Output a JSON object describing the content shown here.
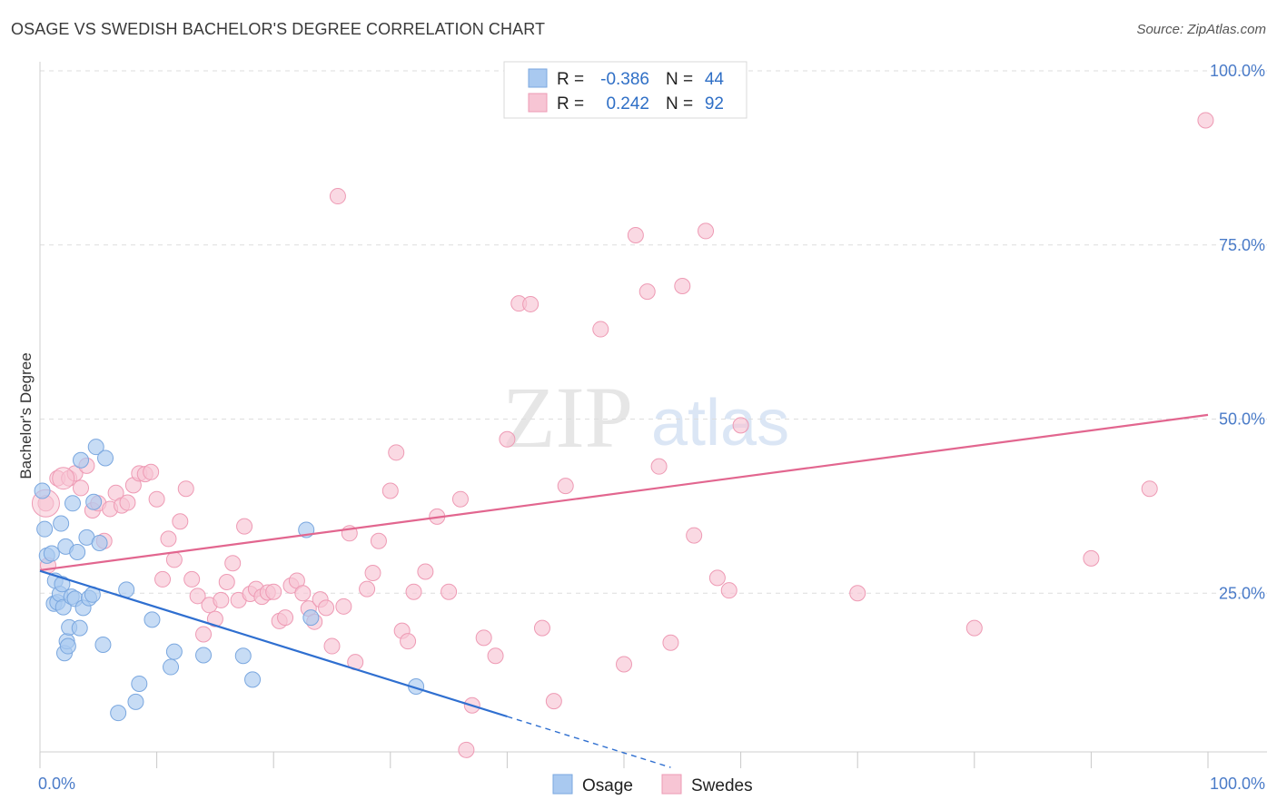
{
  "header": {
    "title": "OSAGE VS SWEDISH BACHELOR'S DEGREE CORRELATION CHART",
    "source": "Source: ZipAtlas.com"
  },
  "watermark": {
    "zip": "ZIP",
    "atlas": "atlas"
  },
  "legend_top": {
    "rows": [
      {
        "r_label": "R =",
        "r_value": "-0.386",
        "n_label": "N =",
        "n_value": "44",
        "color": "#a9c9f0"
      },
      {
        "r_label": "R =",
        "r_value": "0.242",
        "n_label": "N =",
        "n_value": "92",
        "color": "#f5b8cb"
      }
    ]
  },
  "legend_bottom": {
    "osage": "Osage",
    "swedes": "Swedes"
  },
  "colors": {
    "osage_fill": "#a9c9f0",
    "osage_stroke": "#7aa7df",
    "osage_line": "#2f6fd0",
    "swedes_fill": "#f7c5d4",
    "swedes_stroke": "#ee9ab4",
    "swedes_line": "#e2668f",
    "grid": "#dddddd",
    "tick_text": "#4a7bc8"
  },
  "chart_data": {
    "type": "scatter",
    "title": "OSAGE VS SWEDISH BACHELOR'S DEGREE CORRELATION CHART",
    "xlabel": "",
    "ylabel": "Bachelor's Degree",
    "xlim": [
      0,
      100
    ],
    "ylim": [
      0,
      100
    ],
    "x_tick_labels": [
      "0.0%",
      "100.0%"
    ],
    "y_tick_labels": [
      "25.0%",
      "50.0%",
      "75.0%",
      "100.0%"
    ],
    "y_ticks": [
      25,
      50,
      75,
      100
    ],
    "grid": true,
    "legend_position": "top-center",
    "series": [
      {
        "name": "Osage",
        "r": -0.386,
        "n": 44,
        "trend": {
          "x0": 0,
          "y0": 28.2,
          "x1": 40,
          "y1": 7.3,
          "dash_to_x": 54
        },
        "points": [
          [
            0.2,
            39.7
          ],
          [
            0.4,
            34.2
          ],
          [
            0.6,
            30.4
          ],
          [
            1,
            30.7
          ],
          [
            1.2,
            23.5
          ],
          [
            1.3,
            26.8
          ],
          [
            1.5,
            23.7
          ],
          [
            1.7,
            24.9
          ],
          [
            1.8,
            35
          ],
          [
            1.9,
            26.3
          ],
          [
            2,
            23
          ],
          [
            2.1,
            16.4
          ],
          [
            2.2,
            31.7
          ],
          [
            2.3,
            18.1
          ],
          [
            2.4,
            17.4
          ],
          [
            2.5,
            20.1
          ],
          [
            2.7,
            24.5
          ],
          [
            2.8,
            37.9
          ],
          [
            3,
            24.2
          ],
          [
            3.2,
            30.9
          ],
          [
            3.4,
            20
          ],
          [
            3.5,
            44.1
          ],
          [
            3.7,
            22.9
          ],
          [
            4,
            33
          ],
          [
            4.2,
            24.3
          ],
          [
            4.5,
            24.8
          ],
          [
            4.6,
            38.1
          ],
          [
            4.8,
            46
          ],
          [
            5.1,
            32.2
          ],
          [
            5.4,
            17.6
          ],
          [
            5.6,
            44.4
          ],
          [
            6.7,
            7.8
          ],
          [
            7.4,
            25.5
          ],
          [
            8.2,
            9.4
          ],
          [
            8.5,
            12
          ],
          [
            9.6,
            21.2
          ],
          [
            11.2,
            14.4
          ],
          [
            11.5,
            16.6
          ],
          [
            14,
            16.1
          ],
          [
            17.4,
            16
          ],
          [
            18.2,
            12.6
          ],
          [
            22.8,
            34.1
          ],
          [
            23.2,
            21.5
          ],
          [
            32.2,
            11.6
          ]
        ]
      },
      {
        "name": "Swedes",
        "r": 0.242,
        "n": 92,
        "trend": {
          "x0": 0,
          "y0": 28.3,
          "x1": 100,
          "y1": 50.6
        },
        "points": [
          [
            0.5,
            37.9
          ],
          [
            0.7,
            29
          ],
          [
            1.5,
            41.5
          ],
          [
            2.5,
            41.5
          ],
          [
            3,
            42.2
          ],
          [
            3.5,
            40.1
          ],
          [
            4,
            43.3
          ],
          [
            4.5,
            36.9
          ],
          [
            5,
            37.9
          ],
          [
            5.5,
            32.5
          ],
          [
            6,
            37.1
          ],
          [
            6.5,
            39.4
          ],
          [
            7,
            37.6
          ],
          [
            7.5,
            38
          ],
          [
            8,
            40.5
          ],
          [
            8.5,
            42.2
          ],
          [
            9,
            42.1
          ],
          [
            9.5,
            42.4
          ],
          [
            10,
            38.5
          ],
          [
            10.5,
            27
          ],
          [
            11,
            32.8
          ],
          [
            11.5,
            29.8
          ],
          [
            12,
            35.3
          ],
          [
            12.5,
            40
          ],
          [
            13,
            27
          ],
          [
            13.5,
            24.6
          ],
          [
            14,
            19.1
          ],
          [
            14.5,
            23.3
          ],
          [
            15,
            21.3
          ],
          [
            15.5,
            24
          ],
          [
            16,
            26.6
          ],
          [
            16.5,
            29.3
          ],
          [
            17,
            24
          ],
          [
            17.5,
            34.6
          ],
          [
            18,
            24.9
          ],
          [
            18.5,
            25.6
          ],
          [
            19,
            24.5
          ],
          [
            19.5,
            25.1
          ],
          [
            20,
            25.2
          ],
          [
            20.5,
            21
          ],
          [
            21,
            21.5
          ],
          [
            21.5,
            26.1
          ],
          [
            22,
            26.8
          ],
          [
            22.5,
            25
          ],
          [
            23,
            22.8
          ],
          [
            23.5,
            20.9
          ],
          [
            24,
            24.1
          ],
          [
            24.5,
            22.9
          ],
          [
            25,
            17.4
          ],
          [
            25.5,
            82
          ],
          [
            26,
            23.1
          ],
          [
            26.5,
            33.6
          ],
          [
            27,
            15.1
          ],
          [
            28,
            25.6
          ],
          [
            28.5,
            27.9
          ],
          [
            29,
            32.5
          ],
          [
            30,
            39.7
          ],
          [
            30.5,
            45.2
          ],
          [
            31,
            19.6
          ],
          [
            31.5,
            18.1
          ],
          [
            32,
            25.2
          ],
          [
            33,
            28.1
          ],
          [
            34,
            36
          ],
          [
            35,
            25.2
          ],
          [
            36,
            38.5
          ],
          [
            36.5,
            2.5
          ],
          [
            37,
            8.9
          ],
          [
            38,
            18.6
          ],
          [
            39,
            16
          ],
          [
            40,
            47.1
          ],
          [
            41,
            66.6
          ],
          [
            42,
            66.5
          ],
          [
            43,
            20
          ],
          [
            44,
            9.5
          ],
          [
            45,
            40.4
          ],
          [
            48,
            62.9
          ],
          [
            50,
            14.8
          ],
          [
            51,
            76.4
          ],
          [
            52,
            68.3
          ],
          [
            53,
            43.2
          ],
          [
            54,
            17.9
          ],
          [
            55,
            69.1
          ],
          [
            56,
            33.3
          ],
          [
            57,
            77
          ],
          [
            58,
            27.2
          ],
          [
            59,
            25.4
          ],
          [
            60,
            49.1
          ],
          [
            70,
            25
          ],
          [
            80,
            20
          ],
          [
            90,
            30
          ],
          [
            99.8,
            92.9
          ],
          [
            95,
            40
          ]
        ]
      }
    ]
  }
}
